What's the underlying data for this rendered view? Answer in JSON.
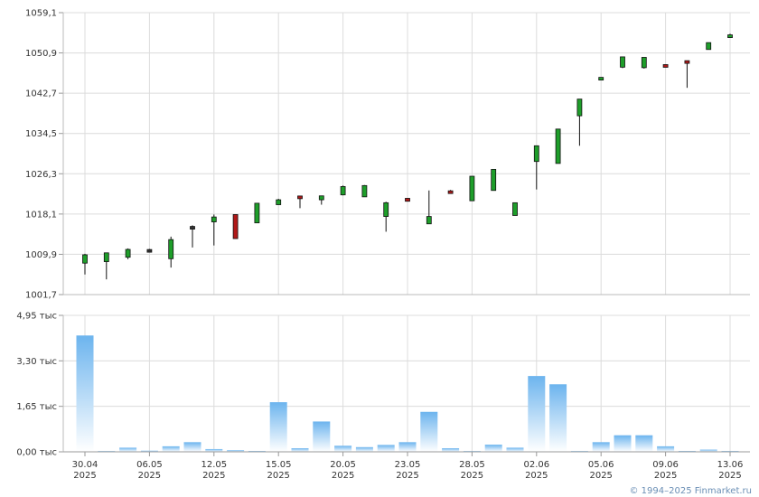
{
  "credit": "© 1994–2025 Finmarket.ru",
  "chart_data": [
    {
      "type": "candlestick",
      "y_ticks": [
        "1001,7",
        "1009,9",
        "1018,1",
        "1026,3",
        "1034,5",
        "1042,7",
        "1050,9",
        "1059,1"
      ],
      "ylim": [
        1001.7,
        1059.1
      ],
      "grid": true,
      "colors": {
        "up": "#1e9e2a",
        "down": "#b01818",
        "flat": "#333333"
      },
      "candles": [
        {
          "o": 1008.1,
          "h": 1010.0,
          "l": 1005.8,
          "c": 1009.8
        },
        {
          "o": 1008.4,
          "h": 1010.1,
          "l": 1004.8,
          "c": 1010.2
        },
        {
          "o": 1009.3,
          "h": 1011.1,
          "l": 1008.9,
          "c": 1010.9
        },
        {
          "o": 1010.6,
          "h": 1011.0,
          "l": 1010.3,
          "c": 1010.6
        },
        {
          "o": 1009.0,
          "h": 1013.5,
          "l": 1007.2,
          "c": 1012.9
        },
        {
          "o": 1015.3,
          "h": 1015.8,
          "l": 1011.3,
          "c": 1015.3
        },
        {
          "o": 1016.5,
          "h": 1018.0,
          "l": 1011.7,
          "c": 1017.5
        },
        {
          "o": 1018.0,
          "h": 1018.0,
          "l": 1013.1,
          "c": 1013.1
        },
        {
          "o": 1016.3,
          "h": 1020.3,
          "l": 1016.3,
          "c": 1020.3
        },
        {
          "o": 1020.0,
          "h": 1021.2,
          "l": 1020.0,
          "c": 1021.0
        },
        {
          "o": 1021.6,
          "h": 1021.8,
          "l": 1019.3,
          "c": 1021.4
        },
        {
          "o": 1021.0,
          "h": 1021.8,
          "l": 1020.0,
          "c": 1021.8
        },
        {
          "o": 1022.0,
          "h": 1023.9,
          "l": 1021.9,
          "c": 1023.7
        },
        {
          "o": 1021.6,
          "h": 1024.0,
          "l": 1021.6,
          "c": 1023.9
        },
        {
          "o": 1017.6,
          "h": 1020.6,
          "l": 1014.5,
          "c": 1020.4
        },
        {
          "o": 1021.3,
          "h": 1021.3,
          "l": 1020.7,
          "c": 1020.7
        },
        {
          "o": 1016.1,
          "h": 1022.9,
          "l": 1016.1,
          "c": 1017.6
        },
        {
          "o": 1022.6,
          "h": 1023.0,
          "l": 1022.3,
          "c": 1022.5
        },
        {
          "o": 1020.8,
          "h": 1025.8,
          "l": 1020.8,
          "c": 1025.8
        },
        {
          "o": 1022.9,
          "h": 1027.2,
          "l": 1022.9,
          "c": 1027.2
        },
        {
          "o": 1017.8,
          "h": 1020.4,
          "l": 1017.8,
          "c": 1020.4
        },
        {
          "o": 1028.8,
          "h": 1032.0,
          "l": 1023.1,
          "c": 1032.0
        },
        {
          "o": 1028.4,
          "h": 1035.4,
          "l": 1028.4,
          "c": 1035.4
        },
        {
          "o": 1038.1,
          "h": 1041.5,
          "l": 1032.0,
          "c": 1041.5
        },
        {
          "o": 1045.6,
          "h": 1045.9,
          "l": 1045.4,
          "c": 1045.7
        },
        {
          "o": 1048.0,
          "h": 1050.1,
          "l": 1047.8,
          "c": 1050.1
        },
        {
          "o": 1047.9,
          "h": 1050.0,
          "l": 1047.7,
          "c": 1050.0
        },
        {
          "o": 1048.4,
          "h": 1048.4,
          "l": 1048.1,
          "c": 1048.1
        },
        {
          "o": 1049.1,
          "h": 1049.3,
          "l": 1043.8,
          "c": 1049.0
        },
        {
          "o": 1051.6,
          "h": 1053.0,
          "l": 1051.6,
          "c": 1053.0
        },
        {
          "o": 1054.2,
          "h": 1054.8,
          "l": 1054.0,
          "c": 1054.4
        }
      ]
    },
    {
      "type": "bar",
      "y_ticks": [
        "0,00 тыс",
        "1,65 тыс",
        "3,30 тыс",
        "4,95 тыс"
      ],
      "ylim": [
        0,
        4.95
      ],
      "grid": true,
      "color_top": "#6cb4ee",
      "color_bottom": "#ffffff",
      "values": [
        4.22,
        0.02,
        0.15,
        0.04,
        0.2,
        0.35,
        0.1,
        0.06,
        0.03,
        1.8,
        0.13,
        1.1,
        0.22,
        0.17,
        0.25,
        0.35,
        1.45,
        0.13,
        0.02,
        0.26,
        0.15,
        2.75,
        2.45,
        0.02,
        0.35,
        0.6,
        0.6,
        0.2,
        0.03,
        0.08,
        0.03
      ],
      "x_tick_labels": [
        {
          "i": 0,
          "date": "30.04",
          "year": "2025"
        },
        {
          "i": 3,
          "date": "06.05",
          "year": "2025"
        },
        {
          "i": 6,
          "date": "12.05",
          "year": "2025"
        },
        {
          "i": 9,
          "date": "15.05",
          "year": "2025"
        },
        {
          "i": 12,
          "date": "20.05",
          "year": "2025"
        },
        {
          "i": 15,
          "date": "23.05",
          "year": "2025"
        },
        {
          "i": 18,
          "date": "28.05",
          "year": "2025"
        },
        {
          "i": 21,
          "date": "02.06",
          "year": "2025"
        },
        {
          "i": 24,
          "date": "05.06",
          "year": "2025"
        },
        {
          "i": 27,
          "date": "09.06",
          "year": "2025"
        },
        {
          "i": 30,
          "date": "13.06",
          "year": "2025"
        }
      ]
    }
  ]
}
